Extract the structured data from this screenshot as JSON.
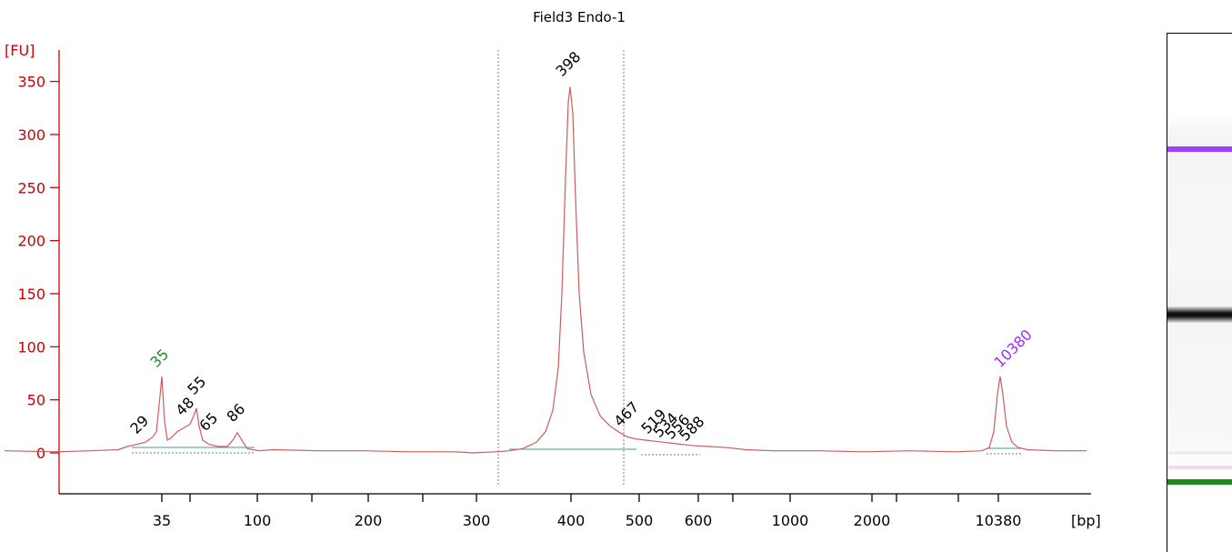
{
  "chart_data": {
    "type": "line",
    "title": "Field3 Endo-1",
    "ylabel": "[FU]",
    "xlabel": "[bp]",
    "ylim": [
      -40,
      380
    ],
    "yticks": [
      0,
      50,
      100,
      150,
      200,
      250,
      300,
      350
    ],
    "xtick_labels": [
      "35",
      "100",
      "200",
      "300",
      "400",
      "500",
      "600",
      "1000",
      "2000",
      "10380"
    ],
    "peaks": [
      {
        "label": "35",
        "size_bp": 35,
        "fu": 72,
        "color": "#228B22"
      },
      {
        "label": "29",
        "size_bp": 29,
        "fu": 8,
        "color": "#000000"
      },
      {
        "label": "48",
        "size_bp": 48,
        "fu": 30,
        "color": "#000000"
      },
      {
        "label": "55",
        "size_bp": 55,
        "fu": 42,
        "color": "#000000"
      },
      {
        "label": "65",
        "size_bp": 65,
        "fu": 8,
        "color": "#000000"
      },
      {
        "label": "86",
        "size_bp": 86,
        "fu": 19,
        "color": "#000000"
      },
      {
        "label": "398",
        "size_bp": 398,
        "fu": 345,
        "color": "#000000"
      },
      {
        "label": "467",
        "size_bp": 467,
        "fu": 14,
        "color": "#000000"
      },
      {
        "label": "519",
        "size_bp": 519,
        "fu": 10,
        "color": "#000000"
      },
      {
        "label": "534",
        "size_bp": 534,
        "fu": 8,
        "color": "#000000"
      },
      {
        "label": "556",
        "size_bp": 556,
        "fu": 6,
        "color": "#000000"
      },
      {
        "label": "588",
        "size_bp": 588,
        "fu": 5,
        "color": "#000000"
      },
      {
        "label": "10380",
        "size_bp": 10380,
        "fu": 72,
        "color": "#9b30ff"
      }
    ],
    "series": [
      {
        "color": "#cd5c5c",
        "points": [
          [
            5,
            2
          ],
          [
            60,
            1
          ],
          [
            100,
            2
          ],
          [
            130,
            3
          ],
          [
            140,
            6
          ],
          [
            150,
            8
          ],
          [
            160,
            10
          ],
          [
            168,
            15
          ],
          [
            172,
            20
          ],
          [
            175,
            45
          ],
          [
            178,
            72
          ],
          [
            181,
            30
          ],
          [
            184,
            12
          ],
          [
            188,
            14
          ],
          [
            195,
            20
          ],
          [
            203,
            24
          ],
          [
            209,
            27
          ],
          [
            213,
            35
          ],
          [
            216,
            42
          ],
          [
            219,
            25
          ],
          [
            223,
            12
          ],
          [
            230,
            8
          ],
          [
            240,
            6
          ],
          [
            250,
            6
          ],
          [
            256,
            12
          ],
          [
            261,
            19
          ],
          [
            266,
            12
          ],
          [
            272,
            4
          ],
          [
            285,
            2
          ],
          [
            300,
            3
          ],
          [
            350,
            2
          ],
          [
            400,
            2
          ],
          [
            450,
            1
          ],
          [
            500,
            1
          ],
          [
            520,
            0
          ],
          [
            545,
            1
          ],
          [
            560,
            2
          ],
          [
            575,
            4
          ],
          [
            590,
            10
          ],
          [
            600,
            20
          ],
          [
            608,
            40
          ],
          [
            614,
            80
          ],
          [
            618,
            150
          ],
          [
            622,
            260
          ],
          [
            625,
            330
          ],
          [
            627,
            345
          ],
          [
            630,
            320
          ],
          [
            633,
            240
          ],
          [
            637,
            150
          ],
          [
            642,
            95
          ],
          [
            650,
            55
          ],
          [
            660,
            35
          ],
          [
            670,
            26
          ],
          [
            680,
            20
          ],
          [
            690,
            15
          ],
          [
            700,
            13
          ],
          [
            710,
            12
          ],
          [
            720,
            11
          ],
          [
            730,
            10
          ],
          [
            740,
            9
          ],
          [
            760,
            7
          ],
          [
            780,
            6
          ],
          [
            800,
            5
          ],
          [
            820,
            3
          ],
          [
            850,
            2
          ],
          [
            900,
            2
          ],
          [
            950,
            1
          ],
          [
            1000,
            2
          ],
          [
            1050,
            1
          ],
          [
            1080,
            2
          ],
          [
            1088,
            5
          ],
          [
            1093,
            20
          ],
          [
            1097,
            55
          ],
          [
            1100,
            72
          ],
          [
            1103,
            55
          ],
          [
            1107,
            25
          ],
          [
            1113,
            10
          ],
          [
            1120,
            5
          ],
          [
            1130,
            3
          ],
          [
            1160,
            2
          ],
          [
            1195,
            2
          ]
        ]
      }
    ]
  }
}
